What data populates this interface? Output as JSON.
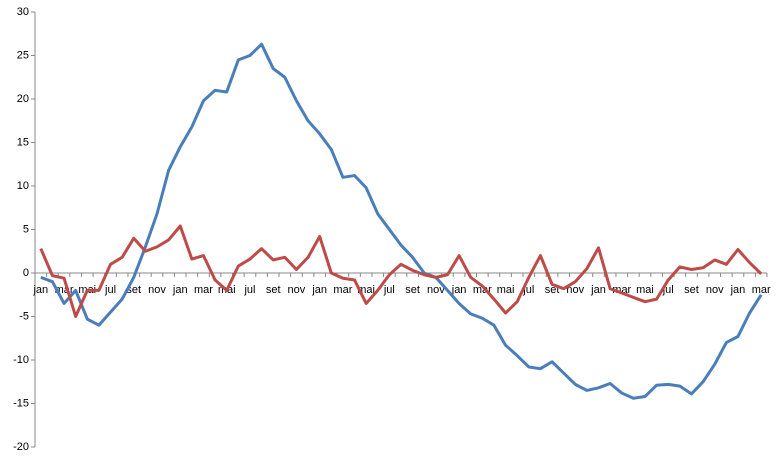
{
  "chart_data": {
    "type": "line",
    "categories": [
      "jan",
      null,
      "mar",
      null,
      "mai",
      null,
      "jul",
      null,
      "set",
      null,
      "nov",
      null,
      "jan",
      null,
      "mar",
      null,
      "mai",
      null,
      "jul",
      null,
      "set",
      null,
      "nov",
      null,
      "jan",
      null,
      "mar",
      null,
      "mai",
      null,
      "jul",
      null,
      "set",
      null,
      "nov",
      null,
      "jan",
      null,
      "mar",
      null,
      "mai",
      null,
      "jul",
      null,
      "set",
      null,
      "nov",
      null,
      "jan",
      null,
      "mar",
      null,
      "mai",
      null,
      "jul",
      null,
      "set",
      null,
      "nov",
      null,
      "jan",
      null,
      "mar"
    ],
    "series": [
      {
        "color": "#4a7ebb",
        "values": [
          -0.5,
          -1,
          -3.5,
          -2,
          -5.3,
          -6,
          -4.5,
          -3,
          -0.5,
          3,
          6.8,
          11.8,
          14.5,
          16.8,
          19.8,
          21,
          20.8,
          24.5,
          25,
          26.3,
          23.5,
          22.5,
          19.8,
          17.5,
          16,
          14.2,
          11,
          11.2,
          9.8,
          6.8,
          5,
          3.2,
          1.8,
          0,
          -0.5,
          -2,
          -3.5,
          -4.7,
          -5.2,
          -6,
          -8.3,
          -9.5,
          -10.8,
          -11,
          -10.2,
          -11.5,
          -12.8,
          -13.5,
          -13.2,
          -12.7,
          -13.8,
          -14.4,
          -14.2,
          -12.9,
          -12.8,
          -13,
          -13.9,
          -12.5,
          -10.5,
          -8,
          -7.3,
          -4.6,
          -2.5
        ]
      },
      {
        "color": "#be4b48",
        "values": [
          2.8,
          -0.3,
          -0.6,
          -5,
          -2,
          -2,
          1,
          1.8,
          4,
          2.5,
          3,
          3.8,
          5.4,
          1.6,
          2,
          -0.8,
          -2,
          0.8,
          1.6,
          2.8,
          1.5,
          1.8,
          0.4,
          1.8,
          4.2,
          0,
          -0.6,
          -0.8,
          -3.5,
          -2,
          -0.2,
          1,
          0.3,
          -0.2,
          -0.5,
          -0.2,
          2,
          -0.5,
          -1.5,
          -3,
          -4.6,
          -3.3,
          -0.5,
          2,
          -1.3,
          -1.8,
          -1,
          0.5,
          2.9,
          -1.8,
          -2.3,
          -2.8,
          -3.3,
          -3,
          -0.8,
          0.7,
          0.4,
          0.6,
          1.5,
          1,
          2.7,
          1.2,
          -0.1
        ]
      }
    ],
    "ylim": [
      -20,
      30
    ],
    "yticks": [
      -20,
      -15,
      -10,
      -5,
      0,
      5,
      10,
      15,
      20,
      25,
      30
    ],
    "grid": false
  }
}
